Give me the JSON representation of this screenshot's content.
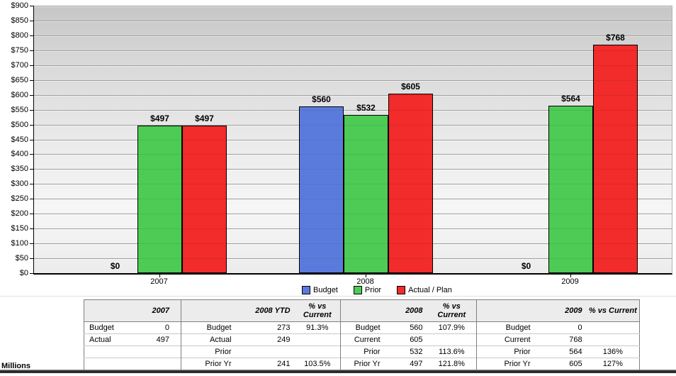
{
  "chart_data": {
    "type": "bar",
    "title": "",
    "xlabel": "",
    "ylabel": "Millions",
    "axis_note": "Millions",
    "categories": [
      "2007",
      "2008",
      "2009"
    ],
    "series": [
      {
        "name": "Budget",
        "color": "#5b7bdc",
        "values": [
          0,
          560,
          0
        ],
        "labels": [
          "$0",
          "$560",
          "$0"
        ]
      },
      {
        "name": "Prior",
        "color": "#4dcb55",
        "values": [
          497,
          532,
          564
        ],
        "labels": [
          "$497",
          "$532",
          "$564"
        ]
      },
      {
        "name": "Actual / Plan",
        "color": "#f22b2b",
        "values": [
          497,
          605,
          768
        ],
        "labels": [
          "$497",
          "$605",
          "$768"
        ]
      }
    ],
    "ylim": [
      0,
      900
    ],
    "y_tick_step": 50,
    "y_tick_prefix": "$",
    "grid": true,
    "legend_position": "bottom"
  },
  "summary_table": {
    "groups": [
      {
        "year_header": "2007",
        "pct_header": "",
        "rows": [
          {
            "label": "Budget",
            "value": "0",
            "pct": ""
          },
          {
            "label": "Actual",
            "value": "497",
            "pct": ""
          },
          {
            "label": "",
            "value": "",
            "pct": ""
          },
          {
            "label": "",
            "value": "",
            "pct": ""
          }
        ]
      },
      {
        "year_header": "2008 YTD",
        "pct_header": "% vs Current",
        "rows": [
          {
            "label": "Budget",
            "value": "273",
            "pct": "91.3%"
          },
          {
            "label": "Actual",
            "value": "249",
            "pct": ""
          },
          {
            "label": "Prior",
            "value": "",
            "pct": ""
          },
          {
            "label": "Prior Yr",
            "value": "241",
            "pct": "103.5%"
          }
        ]
      },
      {
        "year_header": "2008",
        "pct_header": "% vs Current",
        "rows": [
          {
            "label": "Budget",
            "value": "560",
            "pct": "107.9%"
          },
          {
            "label": "Current",
            "value": "605",
            "pct": ""
          },
          {
            "label": "Prior",
            "value": "532",
            "pct": "113.6%"
          },
          {
            "label": "Prior Yr",
            "value": "497",
            "pct": "121.8%"
          }
        ]
      },
      {
        "year_header": "2009",
        "pct_header": "% vs Current",
        "rows": [
          {
            "label": "Budget",
            "value": "0",
            "pct": ""
          },
          {
            "label": "Current",
            "value": "768",
            "pct": ""
          },
          {
            "label": "Prior",
            "value": "564",
            "pct": "136%"
          },
          {
            "label": "Prior Yr",
            "value": "605",
            "pct": "127%"
          }
        ]
      }
    ]
  }
}
